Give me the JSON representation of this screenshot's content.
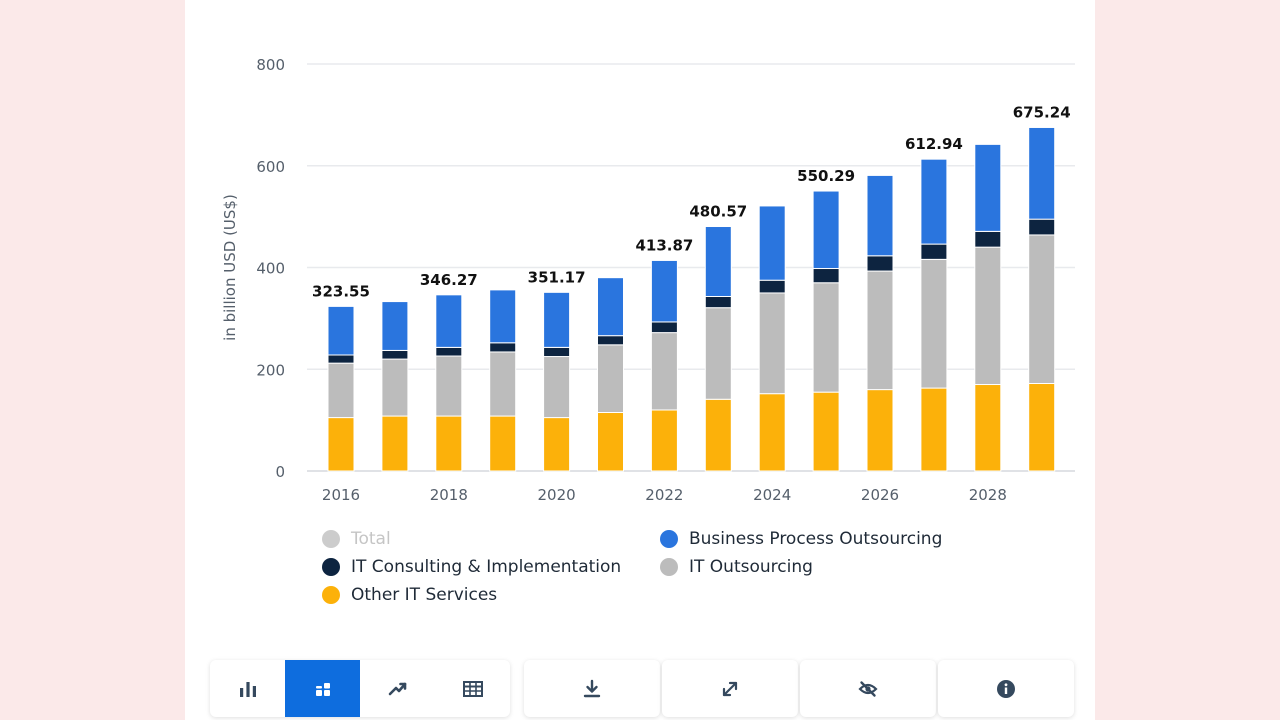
{
  "colors": {
    "bpo": "#2a75de",
    "consulting": "#0d2440",
    "it_outsourcing": "#bcbcbc",
    "other": "#fcb10a",
    "total_legend": "#cccccc",
    "active_button": "#0e6dde",
    "icon": "#35495e"
  },
  "chart_data": {
    "type": "bar",
    "stacked": true,
    "ylabel": "in billion USD (US$)",
    "ylim": [
      0,
      800
    ],
    "yticks": [
      0,
      200,
      400,
      600,
      800
    ],
    "grid": true,
    "legend_position": "bottom",
    "x": [
      2016,
      2017,
      2018,
      2019,
      2020,
      2021,
      2022,
      2023,
      2024,
      2025,
      2026,
      2027,
      2028,
      2029
    ],
    "xtick_labels": [
      "2016",
      "2018",
      "2020",
      "2022",
      "2024",
      "2026",
      "2028"
    ],
    "series": [
      {
        "name": "Other IT Services",
        "key": "other",
        "values": [
          105,
          108,
          108,
          108,
          105,
          115,
          120,
          141,
          152,
          155,
          160,
          163,
          170,
          172
        ]
      },
      {
        "name": "IT Outsourcing",
        "key": "it_outsourcing",
        "values": [
          107,
          112,
          118,
          126,
          120,
          133,
          152,
          180,
          198,
          215,
          233,
          253,
          270,
          292
        ]
      },
      {
        "name": "IT Consulting & Implementation",
        "key": "consulting",
        "values": [
          16,
          17,
          17,
          18,
          18,
          18,
          21,
          22,
          25,
          28,
          30,
          30,
          31,
          31
        ]
      },
      {
        "name": "Business Process Outsourcing",
        "key": "bpo",
        "values": [
          95.55,
          96,
          103.27,
          104,
          108.17,
          114,
          120.87,
          137.57,
          146,
          152.29,
          158,
          166.94,
          171,
          180.24
        ]
      }
    ],
    "totals": [
      323.55,
      333,
      346.27,
      356,
      351.17,
      380,
      413.87,
      480.57,
      521,
      550.29,
      581,
      612.94,
      642,
      675.24
    ],
    "total_labels": {
      "2016": "323.55",
      "2018": "346.27",
      "2020": "351.17",
      "2022": "413.87",
      "2023": "480.57",
      "2025": "550.29",
      "2027": "612.94",
      "2029": "675.24"
    }
  },
  "legend": [
    {
      "label": "Total",
      "color_key": "total_legend",
      "muted": true
    },
    {
      "label": "Business Process Outsourcing",
      "color_key": "bpo",
      "muted": false
    },
    {
      "label": "IT Consulting & Implementation",
      "color_key": "consulting",
      "muted": false
    },
    {
      "label": "IT Outsourcing",
      "color_key": "it_outsourcing",
      "muted": false
    },
    {
      "label": "Other IT Services",
      "color_key": "other",
      "muted": false
    }
  ],
  "toolbar": {
    "buttons": [
      {
        "name": "bar-chart-button",
        "icon": "bar-chart-icon",
        "active": false
      },
      {
        "name": "stacked-chart-button",
        "icon": "stacked-bar-icon",
        "active": true
      },
      {
        "name": "line-chart-button",
        "icon": "trend-line-icon",
        "active": false
      },
      {
        "name": "table-view-button",
        "icon": "table-grid-icon",
        "active": false
      },
      {
        "name": "download-button",
        "icon": "download-icon",
        "active": false
      },
      {
        "name": "fullscreen-button",
        "icon": "expand-icon",
        "active": false
      },
      {
        "name": "hide-button",
        "icon": "eye-off-icon",
        "active": false
      },
      {
        "name": "info-button",
        "icon": "info-icon",
        "active": false
      }
    ]
  }
}
